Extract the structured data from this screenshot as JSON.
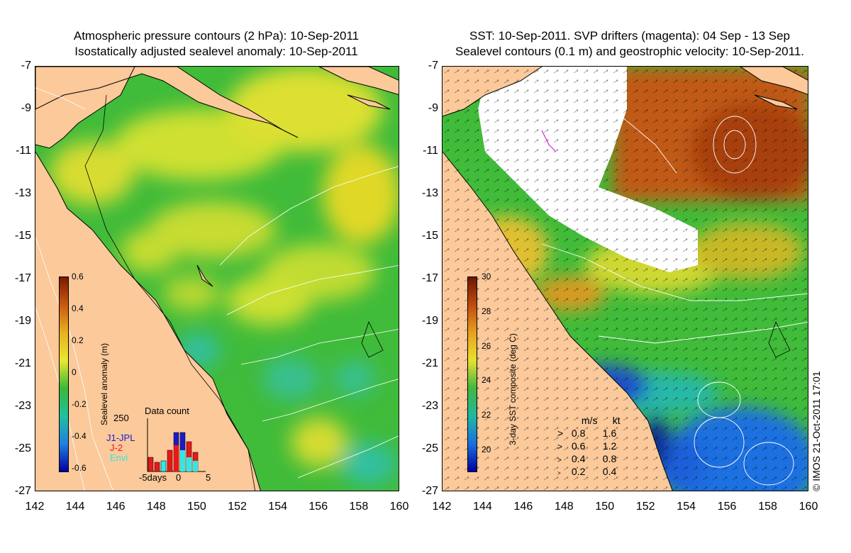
{
  "left_panel": {
    "title_line1": "Atmospheric pressure contours (2 hPa): 10-Sep-2011",
    "title_line2": "Isostatically adjusted sealevel anomaly: 10-Sep-2011",
    "colorbar": {
      "label": "Sealevel anomaly (m)",
      "ticks": [
        "0.6",
        "0.4",
        "0.2",
        "0",
        "-0.2",
        "-0.4",
        "-0.6"
      ],
      "colors": [
        "#7a1a00",
        "#c85a10",
        "#e8b020",
        "#e8e830",
        "#3ab83a",
        "#20c0a0",
        "#2080e0",
        "#0000a0"
      ]
    },
    "histogram": {
      "title": "Data count",
      "ymax_label": "250",
      "x_labels": [
        "-5days",
        "0",
        "5"
      ],
      "series": [
        {
          "name": "J1-JPL",
          "color": "#1a1acc"
        },
        {
          "name": "J-2",
          "color": "#e81818"
        },
        {
          "name": "Envi",
          "color": "#30e8e8"
        }
      ]
    }
  },
  "right_panel": {
    "title_line1": "SST: 10-Sep-2011. SVP drifters (magenta): 04 Sep - 13 Sep",
    "title_line2": "Sealevel contours (0.1 m) and geostrophic velocity: 10-Sep-2011.",
    "colorbar": {
      "label": "3-day SST composite (deg C)",
      "ticks": [
        "30",
        "28",
        "26",
        "24",
        "22",
        "20"
      ],
      "colors": [
        "#6a1800",
        "#c04a10",
        "#e8a020",
        "#e8e030",
        "#40b840",
        "#20b8a0",
        "#1a70e0",
        "#0000a0"
      ]
    },
    "velocity_legend": {
      "header_ms": "m/s",
      "header_kt": "kt",
      "rows": [
        {
          "ms": "0.8",
          "kt": "1.6"
        },
        {
          "ms": "0.6",
          "kt": "1.2"
        },
        {
          "ms": "0.4",
          "kt": "0.8"
        },
        {
          "ms": "0.2",
          "kt": "0.4"
        }
      ]
    },
    "copyright": "© IMOS 21-Oct-2011 17:01"
  },
  "axes": {
    "y_labels": [
      "-7",
      "-9",
      "-11",
      "-13",
      "-15",
      "-17",
      "-19",
      "-21",
      "-23",
      "-25",
      "-27"
    ],
    "x_labels": [
      "142",
      "144",
      "146",
      "148",
      "150",
      "152",
      "154",
      "156",
      "158",
      "160"
    ]
  },
  "colors": {
    "land": "#fbc99a",
    "ocean_green": "#3cb83c",
    "ocean_yellow": "#dce030",
    "sst_warm": "#c0501a",
    "sst_cool": "#1a6ad8",
    "cloud": "#ffffff"
  }
}
